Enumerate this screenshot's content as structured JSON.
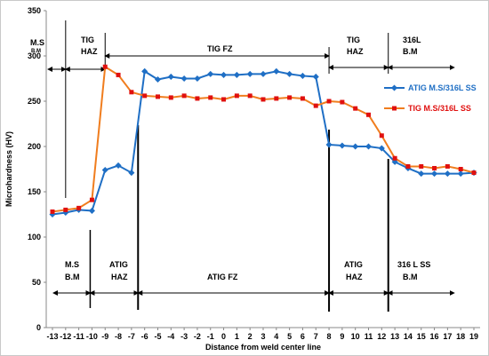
{
  "chart_data": {
    "type": "line",
    "xlabel": "Distance from weld center line",
    "ylabel": "Microhardness (HV)",
    "x": [
      -13,
      -12,
      -11,
      -10,
      -9,
      -8,
      -7,
      -6,
      -5,
      -4,
      -3,
      -2,
      -1,
      0,
      1,
      2,
      3,
      4,
      5,
      6,
      7,
      8,
      9,
      10,
      11,
      12,
      13,
      14,
      15,
      16,
      17,
      18,
      19
    ],
    "ylim": [
      0,
      350
    ],
    "yticks": [
      0,
      50,
      100,
      150,
      200,
      250,
      300,
      350
    ],
    "grid": false,
    "legend_position": "right",
    "series": [
      {
        "name": "ATIG M.S/316L SS",
        "color": "#1f6fc5",
        "marker": "diamond",
        "points": [
          [
            -13,
            125
          ],
          [
            -12,
            127
          ],
          [
            -11,
            130
          ],
          [
            -10,
            129
          ],
          [
            -9,
            174
          ],
          [
            -8,
            179
          ],
          [
            -7,
            171
          ],
          [
            -6,
            283
          ],
          [
            -5,
            274
          ],
          [
            -4,
            277
          ],
          [
            -3,
            275
          ],
          [
            -2,
            275
          ],
          [
            -1,
            280
          ],
          [
            0,
            279
          ],
          [
            1,
            279
          ],
          [
            2,
            280
          ],
          [
            3,
            280
          ],
          [
            4,
            283
          ],
          [
            5,
            280
          ],
          [
            6,
            278
          ],
          [
            7,
            277
          ],
          [
            8,
            202
          ],
          [
            9,
            201
          ],
          [
            10,
            200
          ],
          [
            11,
            200
          ],
          [
            12,
            198
          ],
          [
            13,
            183
          ],
          [
            14,
            176
          ],
          [
            15,
            170
          ],
          [
            16,
            170
          ],
          [
            17,
            170
          ],
          [
            18,
            170
          ],
          [
            19,
            171
          ]
        ]
      },
      {
        "name": "TIG M.S/316L SS",
        "color": "#f07d1e",
        "marker": "square",
        "marker_color": "#e0100f",
        "points": [
          [
            -13,
            128
          ],
          [
            -12,
            130
          ],
          [
            -11,
            132
          ],
          [
            -10,
            141
          ],
          [
            -9,
            288
          ],
          [
            -8,
            279
          ],
          [
            -7,
            260
          ],
          [
            -6,
            256
          ],
          [
            -5,
            255
          ],
          [
            -4,
            254
          ],
          [
            -3,
            256
          ],
          [
            -2,
            253
          ],
          [
            -1,
            254
          ],
          [
            0,
            252
          ],
          [
            1,
            256
          ],
          [
            2,
            256
          ],
          [
            3,
            252
          ],
          [
            4,
            253
          ],
          [
            5,
            254
          ],
          [
            6,
            253
          ],
          [
            7,
            245
          ],
          [
            8,
            250
          ],
          [
            9,
            249
          ],
          [
            10,
            242
          ],
          [
            11,
            235
          ],
          [
            12,
            212
          ],
          [
            13,
            187
          ],
          [
            14,
            178
          ],
          [
            15,
            178
          ],
          [
            16,
            176
          ],
          [
            17,
            178
          ],
          [
            18,
            175
          ],
          [
            19,
            171
          ]
        ]
      }
    ],
    "annotations": {
      "top": [
        {
          "label": "M.S",
          "sublabel": "B.M"
        },
        {
          "label": "TIG",
          "sublabel": "HAZ"
        },
        {
          "label": "TIG FZ",
          "sublabel": ""
        },
        {
          "label": "TIG",
          "sublabel": "HAZ"
        },
        {
          "label": "316L",
          "sublabel": "B.M"
        }
      ],
      "bottom": [
        {
          "label": "M.S",
          "sublabel": "B.M"
        },
        {
          "label": "ATIG",
          "sublabel": "HAZ"
        },
        {
          "label": "ATIG FZ",
          "sublabel": ""
        },
        {
          "label": "ATIG",
          "sublabel": "HAZ"
        },
        {
          "label": "316 L SS",
          "sublabel": "B.M"
        }
      ]
    }
  }
}
